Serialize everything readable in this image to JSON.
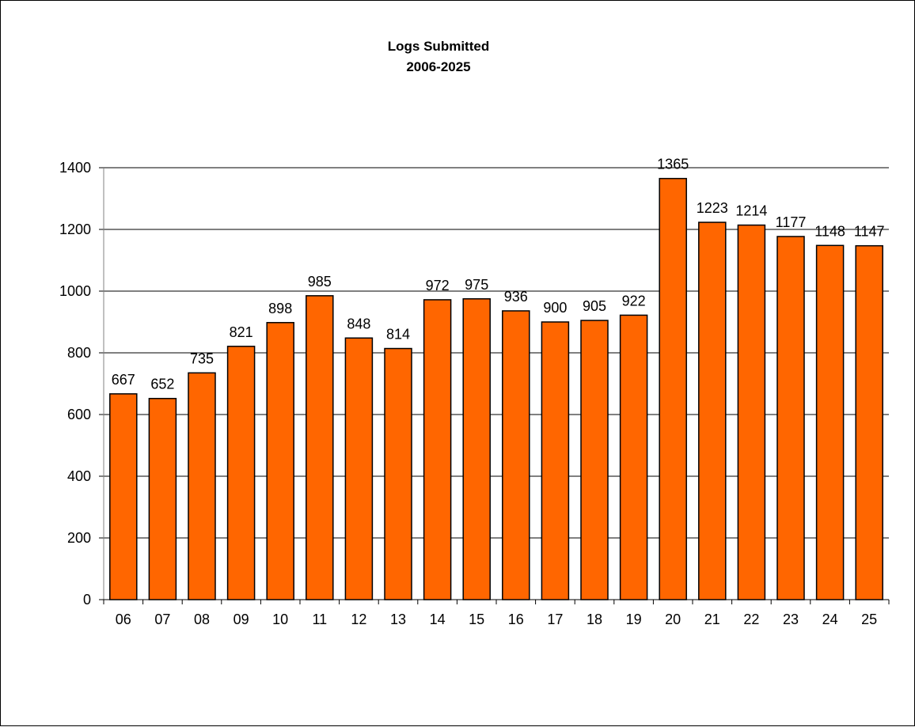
{
  "chart_data": {
    "type": "bar",
    "title": "Logs Submitted",
    "subtitle": "2006-2025",
    "xlabel": "",
    "ylabel": "",
    "categories": [
      "06",
      "07",
      "08",
      "09",
      "10",
      "11",
      "12",
      "13",
      "14",
      "15",
      "16",
      "17",
      "18",
      "19",
      "20",
      "21",
      "22",
      "23",
      "24",
      "25"
    ],
    "values": [
      667,
      652,
      735,
      821,
      898,
      985,
      848,
      814,
      972,
      975,
      936,
      900,
      905,
      922,
      1365,
      1223,
      1214,
      1177,
      1148,
      1147
    ],
    "ylim": [
      0,
      1400
    ],
    "yticks": [
      0,
      200,
      400,
      600,
      800,
      1000,
      1200,
      1400
    ],
    "grid": true,
    "legend": "none",
    "bar_color": "#FF6600",
    "data_labels": true
  }
}
